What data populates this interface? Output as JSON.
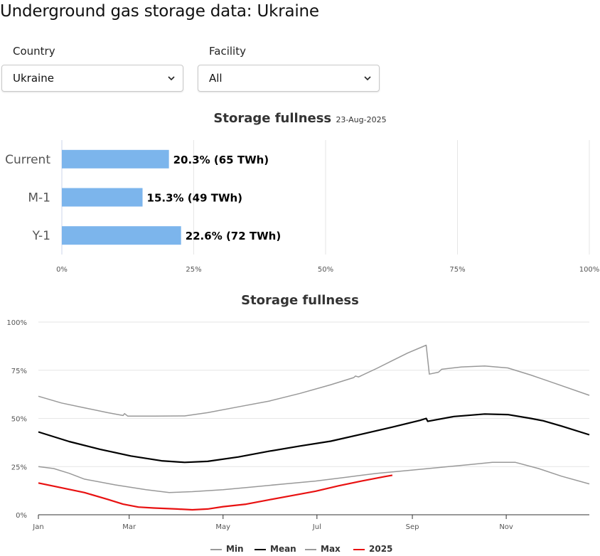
{
  "page": {
    "title": "Underground gas storage data: Ukraine"
  },
  "filters": {
    "country": {
      "label": "Country",
      "value": "Ukraine"
    },
    "facility": {
      "label": "Facility",
      "value": "All"
    }
  },
  "bar_chart": {
    "title": "Storage fullness",
    "date": "23-Aug-2025"
  },
  "line_chart": {
    "title": "Storage fullness"
  },
  "colors": {
    "bar": "#7cb5ec",
    "min": "#999999",
    "mean": "#000000",
    "max": "#999999",
    "y2025": "#e81111",
    "grid": "#e6e6e6"
  },
  "chart_data": [
    {
      "type": "bar",
      "orientation": "horizontal",
      "title": "Storage fullness",
      "subtitle": "23-Aug-2025",
      "categories": [
        "Current",
        "M-1",
        "Y-1"
      ],
      "values": [
        20.3,
        15.3,
        22.6
      ],
      "data_labels": [
        "20.3% (65 TWh)",
        "15.3% (49 TWh)",
        "22.6% (72 TWh)"
      ],
      "xlim": [
        0,
        100
      ],
      "x_ticks": [
        "0%",
        "25%",
        "50%",
        "75%",
        "100%"
      ],
      "grid": true
    },
    {
      "type": "line",
      "title": "Storage fullness",
      "ylim": [
        0,
        100
      ],
      "y_ticks": [
        "0%",
        "25%",
        "50%",
        "75%",
        "100%"
      ],
      "x_ticks": [
        "Jan",
        "Mar",
        "May",
        "Jul",
        "Sep",
        "Nov"
      ],
      "x_tick_days": [
        0,
        59,
        120,
        181,
        243,
        304
      ],
      "xlim_days": [
        0,
        358
      ],
      "legend_position": "bottom-center",
      "grid": true,
      "series": [
        {
          "name": "Min",
          "color": "#999999",
          "points": [
            [
              0,
              25
            ],
            [
              10,
              24
            ],
            [
              20,
              21.5
            ],
            [
              30,
              18.5
            ],
            [
              50,
              15.5
            ],
            [
              70,
              13
            ],
            [
              85,
              11.5
            ],
            [
              100,
              12
            ],
            [
              120,
              13
            ],
            [
              140,
              14.5
            ],
            [
              160,
              16
            ],
            [
              180,
              17.5
            ],
            [
              200,
              19.5
            ],
            [
              220,
              21.5
            ],
            [
              240,
              23
            ],
            [
              260,
              24.5
            ],
            [
              280,
              26
            ],
            [
              295,
              27.2
            ],
            [
              310,
              27.2
            ],
            [
              325,
              24
            ],
            [
              340,
              20
            ],
            [
              358,
              16
            ]
          ]
        },
        {
          "name": "Mean",
          "color": "#000000",
          "points": [
            [
              0,
              43
            ],
            [
              20,
              38
            ],
            [
              40,
              34
            ],
            [
              60,
              30.5
            ],
            [
              80,
              28
            ],
            [
              95,
              27.2
            ],
            [
              110,
              27.7
            ],
            [
              130,
              30
            ],
            [
              150,
              33
            ],
            [
              170,
              35.7
            ],
            [
              190,
              38.2
            ],
            [
              210,
              41.8
            ],
            [
              230,
              45.5
            ],
            [
              248,
              49
            ],
            [
              252,
              50
            ],
            [
              253,
              48.5
            ],
            [
              270,
              51
            ],
            [
              290,
              52.3
            ],
            [
              305,
              52
            ],
            [
              320,
              50
            ],
            [
              328,
              48.8
            ],
            [
              340,
              46
            ],
            [
              358,
              41.5
            ]
          ]
        },
        {
          "name": "Max",
          "color": "#999999",
          "points": [
            [
              0,
              61.5
            ],
            [
              15,
              58
            ],
            [
              30,
              55.5
            ],
            [
              45,
              53
            ],
            [
              55,
              51.5
            ],
            [
              56,
              52.5
            ],
            [
              58,
              51.2
            ],
            [
              75,
              51.2
            ],
            [
              95,
              51.3
            ],
            [
              110,
              53
            ],
            [
              130,
              56
            ],
            [
              150,
              59
            ],
            [
              170,
              63
            ],
            [
              190,
              67.5
            ],
            [
              205,
              71.2
            ],
            [
              206,
              72
            ],
            [
              208,
              71.5
            ],
            [
              220,
              76
            ],
            [
              230,
              80
            ],
            [
              240,
              84
            ],
            [
              252,
              88
            ],
            [
              254,
              73
            ],
            [
              260,
              74
            ],
            [
              262,
              75.5
            ],
            [
              275,
              76.7
            ],
            [
              290,
              77.2
            ],
            [
              305,
              76.2
            ],
            [
              320,
              72.5
            ],
            [
              340,
              67
            ],
            [
              358,
              62
            ]
          ]
        },
        {
          "name": "2025",
          "color": "#e81111",
          "points": [
            [
              0,
              16.5
            ],
            [
              12,
              14.5
            ],
            [
              30,
              11.5
            ],
            [
              45,
              8
            ],
            [
              55,
              5.5
            ],
            [
              65,
              4
            ],
            [
              75,
              3.5
            ],
            [
              90,
              3
            ],
            [
              100,
              2.6
            ],
            [
              110,
              3
            ],
            [
              120,
              4.2
            ],
            [
              135,
              5.5
            ],
            [
              150,
              7.8
            ],
            [
              165,
              10
            ],
            [
              180,
              12.2
            ],
            [
              195,
              15
            ],
            [
              210,
              17.5
            ],
            [
              225,
              19.8
            ],
            [
              230,
              20.5
            ]
          ]
        }
      ]
    }
  ]
}
